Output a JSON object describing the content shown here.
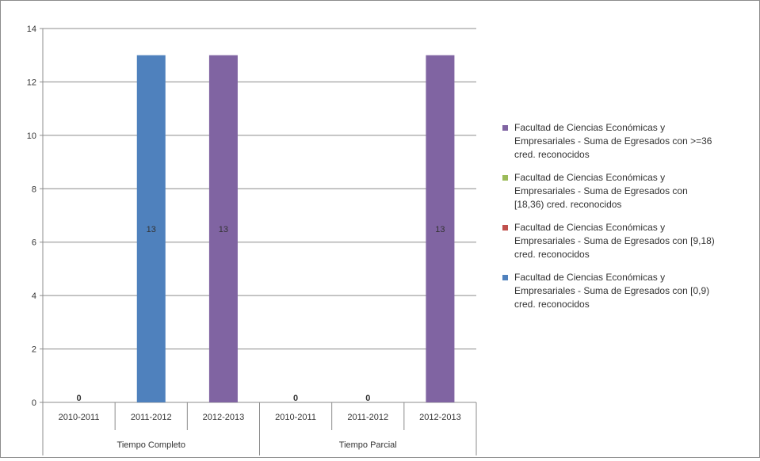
{
  "chart_data": {
    "type": "bar",
    "stacked": true,
    "groups": [
      {
        "label": "Tiempo Completo",
        "categories": [
          "2010-2011",
          "2011-2012",
          "2012-2013"
        ]
      },
      {
        "label": "Tiempo Parcial",
        "categories": [
          "2010-2011",
          "2011-2012",
          "2012-2013"
        ]
      }
    ],
    "categories": [
      "2010-2011",
      "2011-2012",
      "2012-2013",
      "2010-2011",
      "2011-2012",
      "2012-2013"
    ],
    "series": [
      {
        "name": "Facultad de Ciencias Económicas y Empresariales - Suma de Egresados con [0,9) cred. reconocidos",
        "color": "#4f81bd",
        "values": [
          0,
          13,
          0,
          0,
          0,
          0
        ]
      },
      {
        "name": "Facultad de Ciencias Económicas y Empresariales - Suma de Egresados con [9,18) cred. reconocidos",
        "color": "#c0504d",
        "values": [
          0,
          0,
          0,
          0,
          0,
          0
        ]
      },
      {
        "name": "Facultad de Ciencias Económicas y Empresariales - Suma de Egresados con [18,36) cred. reconocidos",
        "color": "#9bbb59",
        "values": [
          0,
          0,
          0,
          0,
          0,
          0
        ]
      },
      {
        "name": "Facultad de Ciencias Económicas y Empresariales - Suma de Egresados con >=36 cred. reconocidos",
        "color": "#8064a2",
        "values": [
          0,
          0,
          13,
          0,
          0,
          13
        ]
      }
    ],
    "data_labels": [
      "0",
      "13",
      "13",
      "0",
      "0",
      "13"
    ],
    "ylim": [
      0,
      14
    ],
    "yticks": [
      0,
      2,
      4,
      6,
      8,
      10,
      12,
      14
    ],
    "grid": true,
    "legend_position": "right",
    "title": "",
    "xlabel": "",
    "ylabel": ""
  },
  "legend": {
    "items": [
      {
        "lines": [
          "Facultad de Ciencias Económicas y",
          "Empresariales - Suma de Egresados con >=36",
          "cred. reconocidos"
        ],
        "color": "#8064a2"
      },
      {
        "lines": [
          "Facultad de Ciencias Económicas y",
          "Empresariales - Suma de Egresados con",
          "[18,36) cred. reconocidos"
        ],
        "color": "#9bbb59"
      },
      {
        "lines": [
          "Facultad de Ciencias Económicas y",
          "Empresariales - Suma de Egresados con [9,18)",
          "cred. reconocidos"
        ],
        "color": "#c0504d"
      },
      {
        "lines": [
          "Facultad de Ciencias Económicas y",
          "Empresariales - Suma de Egresados con [0,9)",
          "cred. reconocidos"
        ],
        "color": "#4f81bd"
      }
    ]
  }
}
